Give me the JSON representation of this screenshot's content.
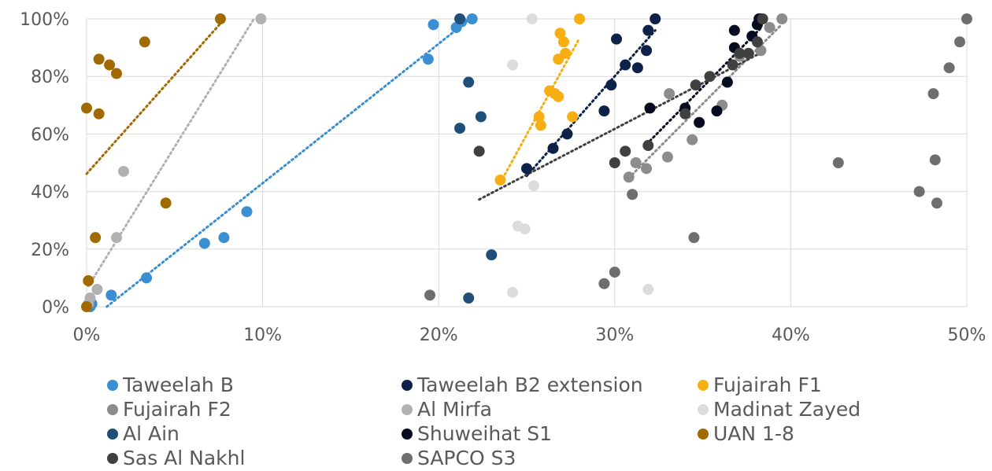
{
  "chart_data": {
    "type": "scatter",
    "title": "",
    "xlabel": "",
    "ylabel": "",
    "xlim": [
      0,
      50
    ],
    "ylim": [
      0,
      100
    ],
    "x_ticks": [
      0,
      10,
      20,
      30,
      40,
      50
    ],
    "y_ticks": [
      0,
      20,
      40,
      60,
      80,
      100
    ],
    "x_tick_labels": [
      "0%",
      "10%",
      "20%",
      "30%",
      "40%",
      "50%"
    ],
    "y_tick_labels": [
      "0%",
      "20%",
      "40%",
      "60%",
      "80%",
      "100%"
    ],
    "grid": "vertical and horizontal",
    "legend_position": "bottom",
    "series": [
      {
        "name": "Taweelah B",
        "color": "#3A8FD3",
        "trendline": true,
        "points": [
          [
            0.2,
            0
          ],
          [
            0.3,
            1
          ],
          [
            1.4,
            4
          ],
          [
            3.4,
            10
          ],
          [
            6.7,
            22
          ],
          [
            7.8,
            24
          ],
          [
            9.1,
            33
          ],
          [
            19.4,
            86
          ],
          [
            19.7,
            98
          ],
          [
            21.0,
            97
          ],
          [
            21.3,
            99
          ],
          [
            21.9,
            100
          ]
        ]
      },
      {
        "name": "Taweelah B2 extension",
        "color": "#0D2149",
        "trendline": true,
        "points": [
          [
            25.0,
            48
          ],
          [
            26.5,
            55
          ],
          [
            27.3,
            60
          ],
          [
            29.4,
            68
          ],
          [
            29.8,
            77
          ],
          [
            30.1,
            93
          ],
          [
            30.6,
            84
          ],
          [
            31.3,
            83
          ],
          [
            31.8,
            89
          ],
          [
            31.9,
            96
          ],
          [
            32.3,
            100
          ]
        ]
      },
      {
        "name": "Fujairah F1",
        "color": "#F6AE13",
        "trendline": true,
        "points": [
          [
            23.5,
            44
          ],
          [
            25.7,
            66
          ],
          [
            25.8,
            63
          ],
          [
            26.3,
            75
          ],
          [
            26.6,
            74
          ],
          [
            26.8,
            73
          ],
          [
            26.8,
            86
          ],
          [
            26.9,
            95
          ],
          [
            27.1,
            92
          ],
          [
            27.2,
            88
          ],
          [
            27.6,
            66
          ],
          [
            28.0,
            100
          ]
        ]
      },
      {
        "name": "Fujairah F2",
        "color": "#8C8C8C",
        "trendline": true,
        "points": [
          [
            30.8,
            45
          ],
          [
            31.2,
            50
          ],
          [
            31.8,
            48
          ],
          [
            33.1,
            74
          ],
          [
            34.4,
            58
          ],
          [
            36.1,
            70
          ],
          [
            37.1,
            87
          ],
          [
            38.3,
            89
          ],
          [
            38.8,
            97
          ],
          [
            39.5,
            100
          ],
          [
            33.0,
            52
          ]
        ]
      },
      {
        "name": "Al Mirfa",
        "color": "#B1B1B1",
        "trendline": true,
        "points": [
          [
            0.1,
            1
          ],
          [
            0.2,
            3
          ],
          [
            0.6,
            6
          ],
          [
            1.7,
            24
          ],
          [
            2.1,
            47
          ],
          [
            9.9,
            100
          ]
        ]
      },
      {
        "name": "Madinat Zayed",
        "color": "#DCDCDC",
        "trendline": false,
        "points": [
          [
            24.2,
            5
          ],
          [
            24.5,
            28
          ],
          [
            24.9,
            27
          ],
          [
            25.4,
            42
          ],
          [
            24.2,
            84
          ],
          [
            25.3,
            100
          ],
          [
            31.9,
            6
          ]
        ]
      },
      {
        "name": "Al Ain",
        "color": "#1F4E79",
        "trendline": false,
        "points": [
          [
            21.7,
            3
          ],
          [
            21.2,
            62
          ],
          [
            21.7,
            78
          ],
          [
            22.4,
            66
          ],
          [
            23.0,
            18
          ],
          [
            21.2,
            100
          ]
        ]
      },
      {
        "name": "Shuweihat S1",
        "color": "#060C1F",
        "trendline": true,
        "points": [
          [
            32.0,
            69
          ],
          [
            34.0,
            69
          ],
          [
            34.8,
            64
          ],
          [
            35.8,
            68
          ],
          [
            36.4,
            78
          ],
          [
            36.8,
            90
          ],
          [
            36.8,
            96
          ],
          [
            37.8,
            94
          ],
          [
            38.1,
            98
          ],
          [
            38.2,
            100
          ],
          [
            38.3,
            100
          ]
        ]
      },
      {
        "name": "UAN 1-8",
        "color": "#A06A00",
        "trendline": true,
        "points": [
          [
            0.0,
            0
          ],
          [
            0.1,
            9
          ],
          [
            0.5,
            24
          ],
          [
            0.0,
            69
          ],
          [
            0.7,
            67
          ],
          [
            0.7,
            86
          ],
          [
            1.3,
            84
          ],
          [
            1.7,
            81
          ],
          [
            3.3,
            92
          ],
          [
            4.5,
            36
          ],
          [
            7.6,
            100
          ]
        ]
      },
      {
        "name": "Sas Al Nakhl",
        "color": "#404040",
        "trendline": true,
        "points": [
          [
            30.0,
            50
          ],
          [
            30.6,
            54
          ],
          [
            31.9,
            56
          ],
          [
            34.0,
            67
          ],
          [
            34.6,
            77
          ],
          [
            35.4,
            80
          ],
          [
            36.7,
            84
          ],
          [
            37.1,
            88
          ],
          [
            37.6,
            88
          ],
          [
            38.1,
            92
          ],
          [
            38.4,
            100
          ],
          [
            22.3,
            54
          ]
        ]
      },
      {
        "name": "SAPCO S3",
        "color": "#6E6E6E",
        "trendline": false,
        "points": [
          [
            19.5,
            4
          ],
          [
            29.4,
            8
          ],
          [
            30.0,
            12
          ],
          [
            34.5,
            24
          ],
          [
            31.0,
            39
          ],
          [
            42.7,
            50
          ],
          [
            47.3,
            40
          ],
          [
            48.1,
            74
          ],
          [
            48.2,
            51
          ],
          [
            48.3,
            36
          ],
          [
            49.0,
            83
          ],
          [
            49.6,
            92
          ],
          [
            50.0,
            100
          ]
        ]
      }
    ]
  }
}
